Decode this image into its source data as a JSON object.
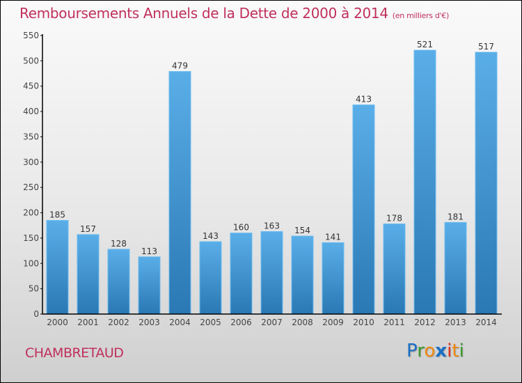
{
  "header": {
    "title": "Remboursements Annuels de la Dette de 2000 à 2014",
    "subtitle": "(en milliers d'€)"
  },
  "footer": {
    "commune": "CHAMBRETAUD",
    "logo": {
      "letters": [
        {
          "char": "P",
          "color": "#1a6fc4"
        },
        {
          "char": "r",
          "color": "#3a9a2a"
        },
        {
          "char": "o",
          "color": "#f08a10"
        },
        {
          "char": "x",
          "color": "#1a6fc4"
        },
        {
          "char": "i",
          "color": "#e03020"
        },
        {
          "char": "t",
          "color": "#f08a10"
        },
        {
          "char": "i",
          "color": "#3a9a2a"
        }
      ]
    }
  },
  "colors": {
    "title": "#c0305c",
    "bar_top": "#5aaee8",
    "bar_bottom": "#2a78b4"
  },
  "chart_data": {
    "type": "bar",
    "title": "Remboursements Annuels de la Dette de 2000 à 2014 (en milliers d'€)",
    "xlabel": "",
    "ylabel": "",
    "ylim": [
      0,
      550
    ],
    "yticks": [
      0,
      50,
      100,
      150,
      200,
      250,
      300,
      350,
      400,
      450,
      500,
      550
    ],
    "grid": false,
    "legend": "none",
    "categories": [
      "2000",
      "2001",
      "2002",
      "2003",
      "2004",
      "2005",
      "2006",
      "2007",
      "2008",
      "2009",
      "2010",
      "2011",
      "2012",
      "2013",
      "2014"
    ],
    "values": [
      185,
      157,
      128,
      113,
      479,
      143,
      160,
      163,
      154,
      141,
      413,
      178,
      521,
      181,
      517
    ]
  }
}
